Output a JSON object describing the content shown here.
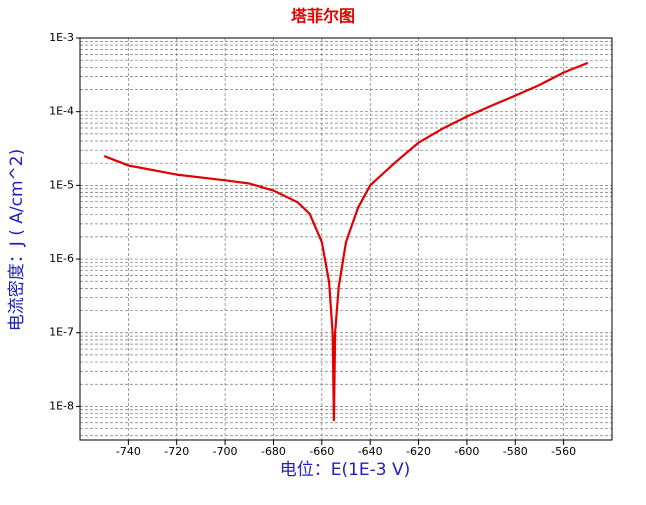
{
  "chart_data": {
    "type": "line",
    "title": "塔菲尔图",
    "x_label": "电位：E(1E-3 V)",
    "y_label": "电流密度：J ( A/cm^2)",
    "log_scale_y": true,
    "grid": true,
    "xlim": [
      -760,
      -540
    ],
    "xticks": [
      -740,
      -720,
      -700,
      -680,
      -660,
      -640,
      -620,
      -600,
      -580,
      -560
    ],
    "ylim": [
      3.5e-09,
      0.001
    ],
    "yticks": [
      {
        "value": 1e-08,
        "label": "1E-8"
      },
      {
        "value": 1e-07,
        "label": "1E-7"
      },
      {
        "value": 1e-06,
        "label": "1E-6"
      },
      {
        "value": 1e-05,
        "label": "1E-5"
      },
      {
        "value": 0.0001,
        "label": "1E-4"
      },
      {
        "value": 0.001,
        "label": "1E-3"
      }
    ],
    "series": [
      {
        "name": "塔菲尔图",
        "color": "#e00000",
        "x": [
          -750,
          -740,
          -720,
          -700,
          -690,
          -680,
          -670,
          -665,
          -660,
          -657,
          -655.5,
          -655,
          -654.5,
          -653,
          -650,
          -645,
          -640,
          -630,
          -620,
          -610,
          -600,
          -590,
          -580,
          -570,
          -560,
          -550
        ],
        "values": [
          2.5e-05,
          1.86e-05,
          1.4e-05,
          1.17e-05,
          1.06e-05,
          8.5e-06,
          5.9e-06,
          4.1e-06,
          1.7e-06,
          4.9e-07,
          9.6e-08,
          6.5e-09,
          1e-07,
          4.2e-07,
          1.7e-06,
          5e-06,
          1e-05,
          2e-05,
          3.8e-05,
          5.9e-05,
          8.6e-05,
          0.00012,
          0.000165,
          0.00023,
          0.00034,
          0.00046
        ]
      }
    ]
  }
}
